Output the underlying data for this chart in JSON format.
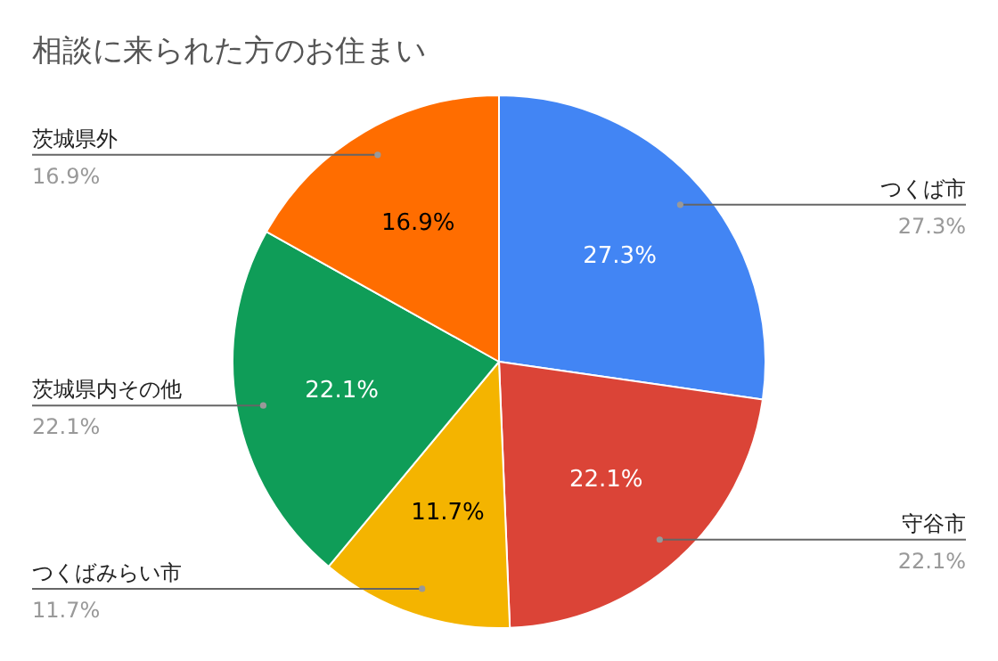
{
  "chart_data": {
    "type": "pie",
    "title": "相談に来られた方のお住まい",
    "categories": [
      "つくば市",
      "守谷市",
      "つくばみらい市",
      "茨城県内その他",
      "茨城県外"
    ],
    "values": [
      27.3,
      22.1,
      11.7,
      22.1,
      16.9
    ],
    "colors": [
      "#4285f4",
      "#db4437",
      "#f4b400",
      "#0f9d58",
      "#ff6d00"
    ],
    "value_labels": [
      "27.3%",
      "22.1%",
      "11.7%",
      "22.1%",
      "16.9%"
    ],
    "legend": false
  }
}
